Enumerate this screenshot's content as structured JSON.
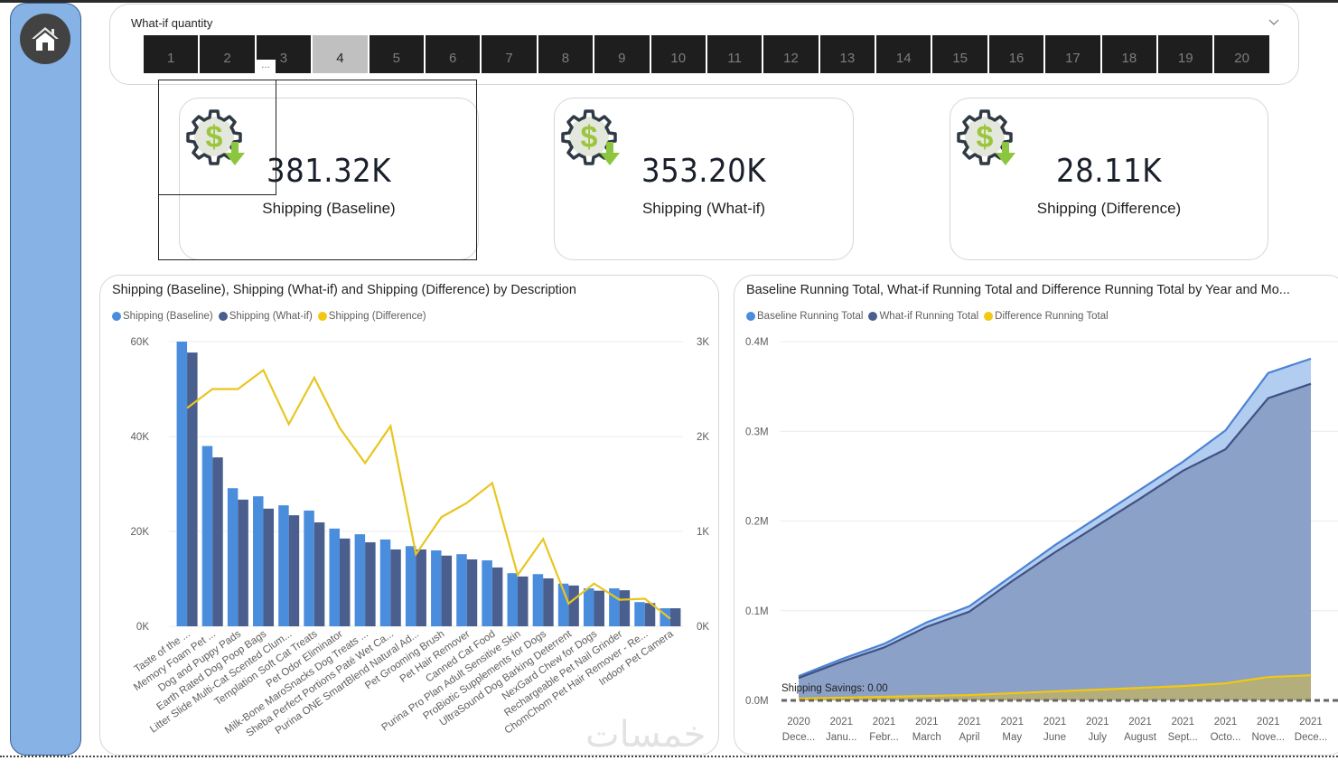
{
  "sidebar": {
    "home_icon": "home-icon",
    "accent": "#86b2e6"
  },
  "slicer": {
    "title": "What-if quantity",
    "selected": 4,
    "options": [
      "1",
      "2",
      "3",
      "4",
      "5",
      "6",
      "7",
      "8",
      "9",
      "10",
      "11",
      "12",
      "13",
      "14",
      "15",
      "16",
      "17",
      "18",
      "19",
      "20"
    ],
    "more_label": "..."
  },
  "kpis": [
    {
      "value": "381.32K",
      "label": "Shipping (Baseline)",
      "icon": "dollar-gear-down-icon"
    },
    {
      "value": "353.20K",
      "label": "Shipping (What-if)",
      "icon": "dollar-gear-down-icon"
    },
    {
      "value": "28.11K",
      "label": "Shipping (Difference)",
      "icon": "dollar-gear-down-icon"
    }
  ],
  "colors": {
    "baseline": "#4a8ddc",
    "whatif": "#4a5f8e",
    "difference": "#e8c620"
  },
  "watermark": "خمسات",
  "chart_data": [
    {
      "type": "bar",
      "title": "Shipping (Baseline), Shipping (What-if) and Shipping (Difference) by Description",
      "legend": [
        "Shipping (Baseline)",
        "Shipping (What-if)",
        "Shipping (Difference)"
      ],
      "legend_position": "top-left",
      "categories": [
        "Taste of the ...",
        "Memory Foam Pet ...",
        "Dog and Puppy Pads",
        "Earth Rated Dog Poop Bags",
        "Litter Slide Multi-Cat Scented Clum...",
        "Templation Soft Cat Treats",
        "Pet Odor Eliminator",
        "Milk-Bone MaroSnacks Dog Treats ...",
        "Sheba Perfect Portions Paté Wet Ca...",
        "Purina ONE SmartBlend Natural Ad...",
        "Pet Grooming Brush",
        "Pet Hair Remover",
        "Canned Cat Food",
        "Purina Pro Plan Adult Sensitive Skin",
        "ProBiotic Supplements for Dogs",
        "UltraSound Dog Barking Deterrent",
        "NexGard Chew for Dogs",
        "Rechargeable Pet Nail Grinder",
        "ChomChom Pet Hair Remover - Re...",
        "Indoor Pet Camera"
      ],
      "series": [
        {
          "name": "Shipping (Baseline)",
          "axis": "left",
          "kind": "bar",
          "values": [
            60000,
            38000,
            29100,
            27400,
            25500,
            24400,
            20600,
            19400,
            18300,
            16900,
            16000,
            15200,
            13900,
            11200,
            11000,
            9000,
            8000,
            8000,
            5100,
            3800
          ]
        },
        {
          "name": "Shipping (What-if)",
          "axis": "left",
          "kind": "bar",
          "values": [
            57700,
            35600,
            26700,
            24800,
            23400,
            21900,
            18500,
            17700,
            16200,
            16200,
            14900,
            14100,
            12400,
            10500,
            10100,
            8600,
            7500,
            7600,
            4900,
            3800
          ]
        },
        {
          "name": "Shipping (Difference)",
          "axis": "right",
          "kind": "line",
          "values": [
            2300,
            2500,
            2500,
            2700,
            2130,
            2620,
            2090,
            1720,
            2110,
            760,
            1150,
            1300,
            1510,
            540,
            920,
            240,
            450,
            280,
            290,
            80
          ]
        }
      ],
      "y_left": {
        "ticks": [
          "0K",
          "20K",
          "40K",
          "60K"
        ],
        "range": [
          0,
          60000
        ]
      },
      "y_right": {
        "ticks": [
          "0K",
          "1K",
          "2K",
          "3K"
        ],
        "range": [
          0,
          3000
        ]
      },
      "grid": true
    },
    {
      "type": "area",
      "title": "Baseline Running Total, What-if Running Total and Difference Running Total by Year and Mo...",
      "legend": [
        "Baseline Running Total",
        "What-if Running Total",
        "Difference Running Total"
      ],
      "legend_position": "top-left",
      "x": [
        [
          "2020",
          "Dece..."
        ],
        [
          "2021",
          "Janu..."
        ],
        [
          "2021",
          "Febr..."
        ],
        [
          "2021",
          "March"
        ],
        [
          "2021",
          "April"
        ],
        [
          "2021",
          "May"
        ],
        [
          "2021",
          "June"
        ],
        [
          "2021",
          "July"
        ],
        [
          "2021",
          "August"
        ],
        [
          "2021",
          "Sept..."
        ],
        [
          "2021",
          "Octo..."
        ],
        [
          "2021",
          "Nove..."
        ],
        [
          "2021",
          "Dece..."
        ]
      ],
      "series": [
        {
          "name": "Baseline Running Total",
          "values": [
            0.027,
            0.046,
            0.063,
            0.087,
            0.105,
            0.139,
            0.173,
            0.204,
            0.235,
            0.266,
            0.301,
            0.365,
            0.381
          ]
        },
        {
          "name": "What-if Running Total",
          "values": [
            0.025,
            0.043,
            0.059,
            0.082,
            0.099,
            0.133,
            0.165,
            0.195,
            0.225,
            0.256,
            0.28,
            0.337,
            0.353
          ]
        },
        {
          "name": "Difference Running Total",
          "values": [
            0.002,
            0.003,
            0.004,
            0.005,
            0.006,
            0.008,
            0.01,
            0.012,
            0.014,
            0.016,
            0.019,
            0.026,
            0.028
          ]
        }
      ],
      "y": {
        "ticks": [
          "0.0M",
          "0.1M",
          "0.2M",
          "0.3M",
          "0.4M"
        ],
        "range": [
          0,
          0.4
        ],
        "unit": "M"
      },
      "reference_line": {
        "label": "Shipping Savings: 0.00",
        "value": 0
      },
      "grid": true
    }
  ]
}
